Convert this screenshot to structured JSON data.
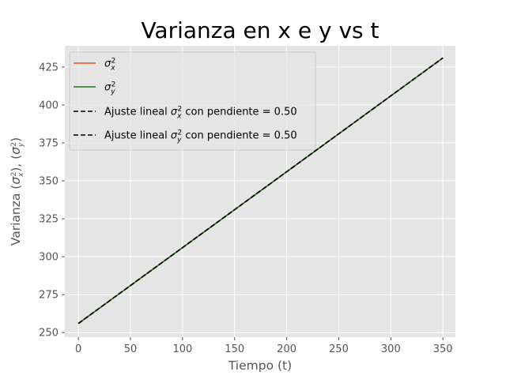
{
  "chart_data": {
    "type": "line",
    "title": "Varianza en x e y vs t",
    "xlabel": "Tiempo (t)",
    "ylabel_parts": [
      "Varianza (",
      "σ",
      "x",
      "2",
      "), (",
      "σ",
      "y",
      "2",
      ")"
    ],
    "xlim": [
      -13,
      362
    ],
    "ylim": [
      247,
      439
    ],
    "xticks": [
      0,
      50,
      100,
      150,
      200,
      250,
      300,
      350
    ],
    "yticks": [
      250,
      275,
      300,
      325,
      350,
      375,
      400,
      425
    ],
    "grid": true,
    "legend_position": "upper-left",
    "series": [
      {
        "name": "σx²",
        "label_parts": [
          "σ",
          "x",
          "2",
          ""
        ],
        "style": "solid",
        "color": "#e8581c",
        "x": [
          0,
          350
        ],
        "y": [
          256,
          431
        ]
      },
      {
        "name": "σy²",
        "label_parts": [
          "σ",
          "y",
          "2",
          ""
        ],
        "style": "solid",
        "color": "#1a7a1a",
        "x": [
          0,
          350
        ],
        "y": [
          256,
          431
        ]
      },
      {
        "name": "Ajuste lineal σx² con pendiente = 0.50",
        "label_parts": [
          "Ajuste lineal σ",
          "x",
          "2",
          " con pendiente = 0.50"
        ],
        "style": "dashed",
        "color": "#000000",
        "x": [
          0,
          350
        ],
        "y": [
          256,
          431
        ]
      },
      {
        "name": "Ajuste lineal σy² con pendiente = 0.50",
        "label_parts": [
          "Ajuste lineal σ",
          "y",
          "2",
          " con pendiente = 0.50"
        ],
        "style": "dashed",
        "color": "#000000",
        "x": [
          0,
          350
        ],
        "y": [
          256,
          431
        ]
      }
    ]
  }
}
